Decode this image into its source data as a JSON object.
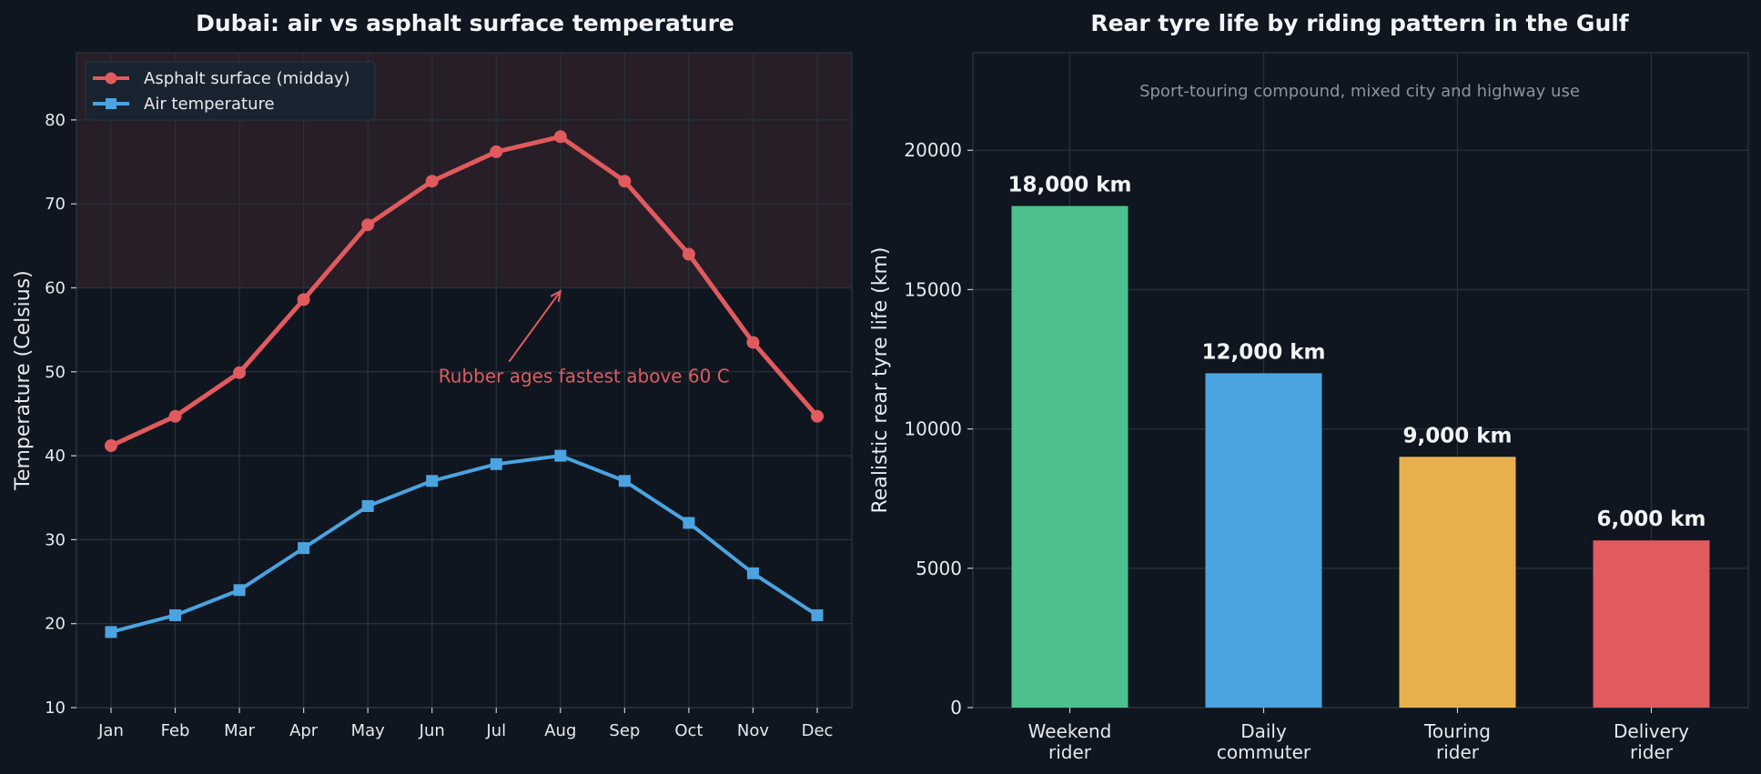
{
  "chart_data": [
    {
      "type": "line",
      "title": "Dubai: air vs asphalt surface temperature",
      "xlabel": "",
      "ylabel": "Temperature (Celsius)",
      "categories": [
        "Jan",
        "Feb",
        "Mar",
        "Apr",
        "May",
        "Jun",
        "Jul",
        "Aug",
        "Sep",
        "Oct",
        "Nov",
        "Dec"
      ],
      "ylim": [
        10,
        88
      ],
      "yticks": [
        10,
        20,
        30,
        40,
        50,
        60,
        70,
        80
      ],
      "grid": true,
      "legend_position": "top-left",
      "shaded_band": {
        "from": 60,
        "to": 88,
        "color": "#d9545a"
      },
      "series": [
        {
          "name": "Asphalt surface (midday)",
          "marker": "circle",
          "color": "#e05a5e",
          "values": [
            41.2,
            44.7,
            49.9,
            58.6,
            67.5,
            72.7,
            76.2,
            78,
            72.7,
            64,
            53.5,
            44.7
          ]
        },
        {
          "name": "Air temperature",
          "marker": "square",
          "color": "#4ba3e0",
          "values": [
            19,
            21,
            24,
            29,
            34,
            37,
            39,
            40,
            37,
            32,
            26,
            21
          ]
        }
      ],
      "annotations": [
        {
          "text": "Rubber ages fastest above 60 C",
          "text_x": 5.1,
          "text_y": 49.5,
          "arrow_from_x": 6.2,
          "arrow_from_y": 51.2,
          "arrow_to_x": 7.0,
          "arrow_to_y": 59.6,
          "color": "#e05a5e"
        }
      ]
    },
    {
      "type": "bar",
      "title": "Rear tyre life by riding pattern in the Gulf",
      "subtitle": "Sport-touring compound, mixed city and highway use",
      "xlabel": "",
      "ylabel": "Realistic rear tyre life (km)",
      "categories": [
        [
          "Weekend",
          "rider"
        ],
        [
          "Daily",
          "commuter"
        ],
        [
          "Touring",
          "rider"
        ],
        [
          "Delivery",
          "rider"
        ]
      ],
      "values": [
        18000,
        12000,
        9000,
        6000
      ],
      "value_labels": [
        "18,000 km",
        "12,000 km",
        "9,000 km",
        "6,000 km"
      ],
      "colors": [
        "#4cc18d",
        "#4ba3e0",
        "#e8b04c",
        "#e05a5e"
      ],
      "ylim": [
        0,
        23500
      ],
      "yticks": [
        0,
        5000,
        10000,
        15000,
        20000
      ],
      "grid": true
    }
  ]
}
